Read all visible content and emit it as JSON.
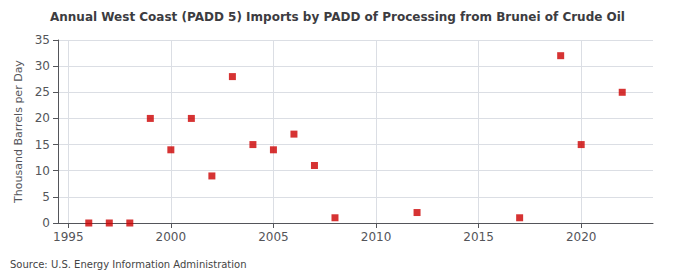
{
  "chart_data": {
    "type": "scatter",
    "title": "Annual West Coast (PADD 5) Imports by PADD of Processing from Brunei of Crude Oil",
    "ylabel": "Thousand Barrels per Day",
    "annotations": [
      "Source: U.S. Energy Information Administration"
    ],
    "x": [
      1996,
      1997,
      1998,
      1999,
      2000,
      2001,
      2002,
      2003,
      2004,
      2005,
      2006,
      2007,
      2008,
      2012,
      2017,
      2019,
      2020,
      2022
    ],
    "values": [
      0,
      0,
      0,
      20,
      14,
      20,
      9,
      28,
      15,
      14,
      17,
      11,
      1,
      2,
      1,
      32,
      15,
      25
    ],
    "color": "#cc0000",
    "marker": "square",
    "xlim": [
      1994.5,
      2023.5
    ],
    "xticks": [
      1995,
      2000,
      2005,
      2010,
      2015,
      2020
    ],
    "ylim": [
      0,
      35
    ],
    "yticks": [
      0,
      5,
      10,
      15,
      20,
      25,
      30,
      35
    ],
    "grid": true
  }
}
